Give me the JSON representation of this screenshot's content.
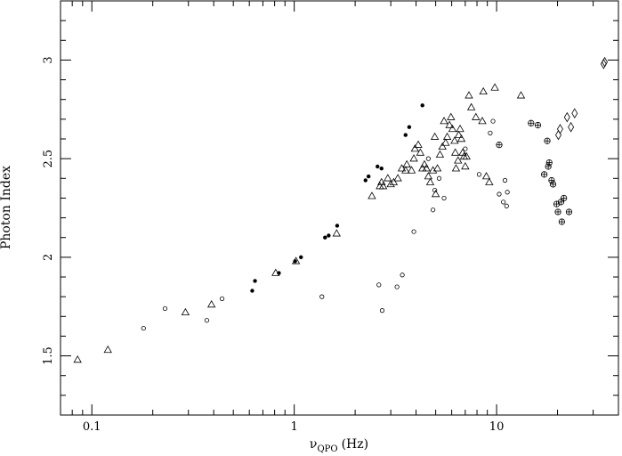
{
  "chart_data": {
    "type": "scatter",
    "title": "",
    "xlabel": {
      "symbol": "ν",
      "subscript": "QPO",
      "unit": "(Hz)"
    },
    "ylabel": "Photon Index",
    "xscale": "log",
    "xlim": [
      0.07,
      40
    ],
    "ylim": [
      1.2,
      3.3
    ],
    "grid": false,
    "legend": "none",
    "x_ticks": [
      {
        "value": 0.1,
        "label": "0.1"
      },
      {
        "value": 1,
        "label": "1"
      },
      {
        "value": 10,
        "label": "10"
      }
    ],
    "y_ticks": [
      {
        "value": 1.5,
        "label": "1.5"
      },
      {
        "value": 2,
        "label": "2"
      },
      {
        "value": 2.5,
        "label": "2.5"
      },
      {
        "value": 3,
        "label": "3"
      }
    ],
    "series": [
      {
        "marker": "filled-circle",
        "points": [
          [
            0.62,
            1.83
          ],
          [
            0.64,
            1.88
          ],
          [
            0.84,
            1.92
          ],
          [
            1.01,
            1.98
          ],
          [
            1.08,
            2.0
          ],
          [
            1.42,
            2.1
          ],
          [
            1.48,
            2.11
          ],
          [
            1.63,
            2.16
          ],
          [
            2.25,
            2.39
          ],
          [
            2.33,
            2.41
          ],
          [
            2.58,
            2.46
          ],
          [
            2.7,
            2.45
          ],
          [
            3.55,
            2.62
          ],
          [
            3.7,
            2.66
          ],
          [
            4.3,
            2.77
          ]
        ]
      },
      {
        "marker": "open-circle",
        "points": [
          [
            0.18,
            1.64
          ],
          [
            0.23,
            1.74
          ],
          [
            0.37,
            1.68
          ],
          [
            0.44,
            1.79
          ],
          [
            1.37,
            1.8
          ],
          [
            2.62,
            1.86
          ],
          [
            2.72,
            1.73
          ],
          [
            3.22,
            1.85
          ],
          [
            3.42,
            1.91
          ],
          [
            3.9,
            2.13
          ],
          [
            4.6,
            2.5
          ],
          [
            4.85,
            2.24
          ],
          [
            4.95,
            2.34
          ],
          [
            5.2,
            2.4
          ],
          [
            5.5,
            2.3
          ],
          [
            7.0,
            2.55
          ],
          [
            8.2,
            2.42
          ],
          [
            9.3,
            2.63
          ],
          [
            9.6,
            2.69
          ],
          [
            10.3,
            2.32
          ],
          [
            10.8,
            2.28
          ],
          [
            11.0,
            2.39
          ],
          [
            11.2,
            2.26
          ],
          [
            11.3,
            2.33
          ]
        ]
      },
      {
        "marker": "open-triangle",
        "points": [
          [
            0.085,
            1.48
          ],
          [
            0.12,
            1.53
          ],
          [
            0.29,
            1.72
          ],
          [
            0.39,
            1.76
          ],
          [
            0.81,
            1.92
          ],
          [
            1.02,
            1.98
          ],
          [
            1.62,
            2.12
          ],
          [
            2.42,
            2.31
          ],
          [
            2.65,
            2.36
          ],
          [
            2.7,
            2.38
          ],
          [
            2.75,
            2.36
          ],
          [
            2.9,
            2.4
          ],
          [
            3.0,
            2.37
          ],
          [
            3.1,
            2.38
          ],
          [
            3.25,
            2.4
          ],
          [
            3.4,
            2.45
          ],
          [
            3.55,
            2.44
          ],
          [
            3.6,
            2.47
          ],
          [
            3.8,
            2.44
          ],
          [
            3.9,
            2.5
          ],
          [
            3.95,
            2.55
          ],
          [
            4.1,
            2.57
          ],
          [
            4.2,
            2.53
          ],
          [
            4.3,
            2.45
          ],
          [
            4.4,
            2.47
          ],
          [
            4.5,
            2.45
          ],
          [
            4.6,
            2.41
          ],
          [
            4.7,
            2.38
          ],
          [
            4.85,
            2.44
          ],
          [
            4.95,
            2.61
          ],
          [
            5.0,
            2.32
          ],
          [
            5.1,
            2.45
          ],
          [
            5.25,
            2.52
          ],
          [
            5.4,
            2.56
          ],
          [
            5.5,
            2.69
          ],
          [
            5.6,
            2.58
          ],
          [
            5.7,
            2.61
          ],
          [
            5.85,
            2.67
          ],
          [
            5.95,
            2.71
          ],
          [
            6.05,
            2.65
          ],
          [
            6.2,
            2.59
          ],
          [
            6.25,
            2.53
          ],
          [
            6.3,
            2.45
          ],
          [
            6.45,
            2.49
          ],
          [
            6.5,
            2.62
          ],
          [
            6.6,
            2.65
          ],
          [
            6.7,
            2.6
          ],
          [
            6.8,
            2.53
          ],
          [
            6.9,
            2.51
          ],
          [
            7.0,
            2.46
          ],
          [
            7.1,
            2.51
          ],
          [
            7.3,
            2.82
          ],
          [
            7.5,
            2.76
          ],
          [
            7.9,
            2.71
          ],
          [
            8.5,
            2.69
          ],
          [
            8.6,
            2.84
          ],
          [
            8.9,
            2.41
          ],
          [
            9.2,
            2.38
          ],
          [
            9.8,
            2.86
          ],
          [
            13.2,
            2.82
          ]
        ]
      },
      {
        "marker": "open-plus-circle",
        "points": [
          [
            10.3,
            2.57
          ],
          [
            14.8,
            2.68
          ],
          [
            16.0,
            2.67
          ],
          [
            17.2,
            2.42
          ],
          [
            17.8,
            2.59
          ],
          [
            18.0,
            2.46
          ],
          [
            18.2,
            2.48
          ],
          [
            18.7,
            2.39
          ],
          [
            19.0,
            2.37
          ],
          [
            19.8,
            2.27
          ],
          [
            20.1,
            2.23
          ],
          [
            20.8,
            2.28
          ],
          [
            21.0,
            2.18
          ],
          [
            21.5,
            2.3
          ],
          [
            22.8,
            2.23
          ]
        ]
      },
      {
        "marker": "open-diamond",
        "points": [
          [
            20.2,
            2.62
          ],
          [
            20.6,
            2.65
          ],
          [
            22.3,
            2.71
          ],
          [
            23.3,
            2.66
          ],
          [
            24.3,
            2.73
          ],
          [
            33.8,
            2.98
          ],
          [
            34.2,
            2.99
          ]
        ]
      }
    ]
  }
}
